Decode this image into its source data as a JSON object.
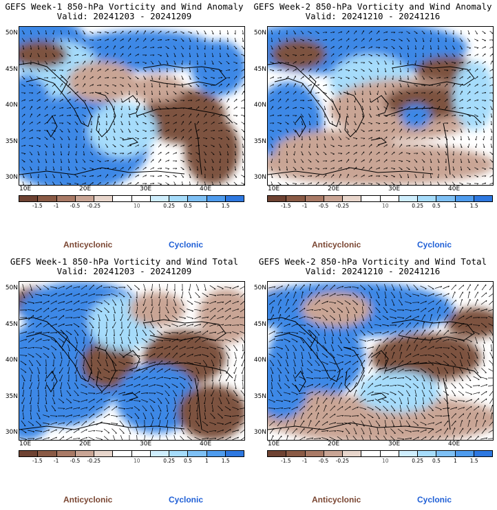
{
  "panels": [
    {
      "id": "w1-anom",
      "title": "GEFS Week-1 850-hPa Vorticity and Wind Anomaly",
      "valid": "Valid: 20241203 - 20241209",
      "legend": {
        "anti": "Anticyclonic",
        "cyc": "Cyclonic"
      }
    },
    {
      "id": "w2-anom",
      "title": "GEFS Week-2 850-hPa Vorticity and Wind Anomaly",
      "valid": "Valid: 20241210 - 20241216",
      "legend": {
        "anti": "Anticyclonic",
        "cyc": "Cyclonic"
      }
    },
    {
      "id": "w1-tot",
      "title": "GEFS Week-1 850-hPa Vorticity and Wind Total",
      "valid": "Valid: 20241203 - 20241209",
      "legend": {
        "anti": "Anticyclonic",
        "cyc": "Cyclonic"
      }
    },
    {
      "id": "w2-tot",
      "title": "GEFS Week-2 850-hPa Vorticity and Wind Total",
      "valid": "Valid: 20241210 - 20241216",
      "legend": {
        "anti": "Anticyclonic",
        "cyc": "Cyclonic"
      }
    }
  ],
  "axes": {
    "lat_labels": [
      "50N",
      "45N",
      "40N",
      "35N",
      "30N"
    ],
    "lon_labels": [
      "10E",
      "20E",
      "30E",
      "40E"
    ]
  },
  "colorbar": {
    "ticks": [
      "-1.5",
      "-1",
      "-0.5",
      "-0.25",
      "0.25",
      "0.5",
      "1",
      "1.5"
    ],
    "units": "10",
    "colors": [
      "#6e4232",
      "#8a5a45",
      "#a97a66",
      "#c9a595",
      "#e8d6cc",
      "#ffffff",
      "#ffffff",
      "#cfeefd",
      "#a6dcfb",
      "#7ec0f5",
      "#4f9cee",
      "#2e78e0"
    ]
  },
  "colors": {
    "anti_strong": "#7d5240",
    "anti_weak": "#c9a595",
    "cyc_weak": "#a6dcfb",
    "cyc_strong": "#3d88e6",
    "coast": "#000000",
    "vector": "#000000"
  }
}
